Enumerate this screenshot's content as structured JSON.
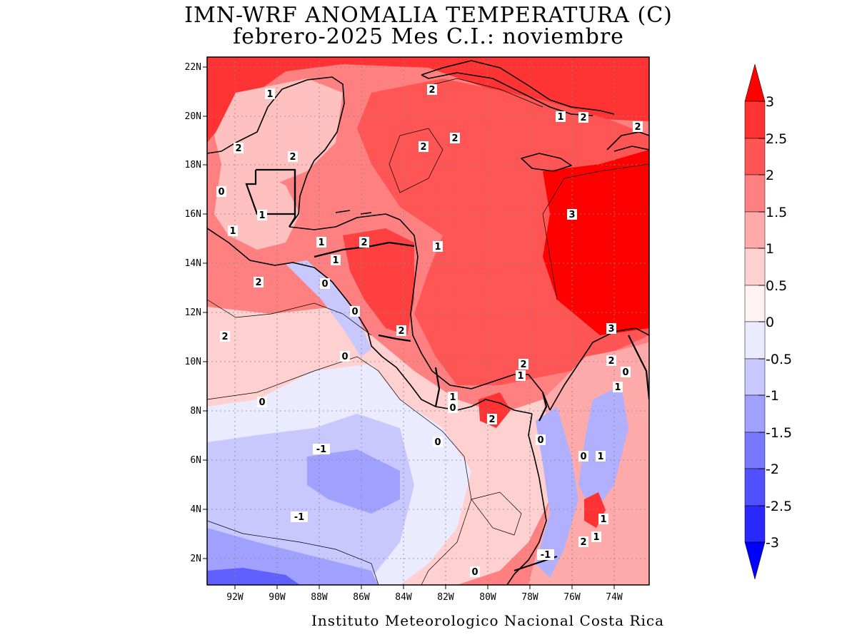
{
  "title": {
    "line1": "IMN-WRF  ANOMALIA TEMPERATURA (C)",
    "line2": "febrero-2025 Mes C.I.: noviembre"
  },
  "footer": "Instituto Meteorologico Nacional Costa Rica",
  "map": {
    "lon_range": [
      -93.5,
      -72.5
    ],
    "lat_range": [
      1,
      22.5
    ],
    "lat_labels": [
      "22N",
      "20N",
      "18N",
      "16N",
      "14N",
      "12N",
      "10N",
      "8N",
      "6N",
      "4N",
      "2N"
    ],
    "lon_labels": [
      "92W",
      "90W",
      "88W",
      "86W",
      "84W",
      "82W",
      "80W",
      "78W",
      "76W",
      "74W"
    ],
    "contour_labels": [
      "1",
      "2",
      "2",
      "2",
      "2",
      "2",
      "1",
      "2",
      "2",
      "0",
      "1",
      "1",
      "2",
      "1",
      "1",
      "2",
      "2",
      "3",
      "1",
      "0",
      "0",
      "2",
      "3",
      "2",
      "0",
      "2",
      "1",
      "1",
      "0",
      "0",
      "1",
      "2",
      "0",
      "0",
      "-1",
      "0",
      "0",
      "-1",
      "1",
      "2",
      "1",
      "-1",
      "0",
      "1"
    ]
  },
  "colorbar": {
    "labels": [
      "3",
      "2.5",
      "2",
      "1.5",
      "1",
      "0.5",
      "0",
      "-0.5",
      "-1",
      "-1.5",
      "-2",
      "-2.5",
      "-3"
    ],
    "colors": [
      "#ff0000",
      "#ff3333",
      "#ff5555",
      "#ff8080",
      "#ffaaaa",
      "#ffd0d0",
      "#fff2f2",
      "#ebebff",
      "#c8c8ff",
      "#a0a0ff",
      "#7878ff",
      "#5050ff",
      "#2828ff",
      "#0000ff"
    ]
  }
}
